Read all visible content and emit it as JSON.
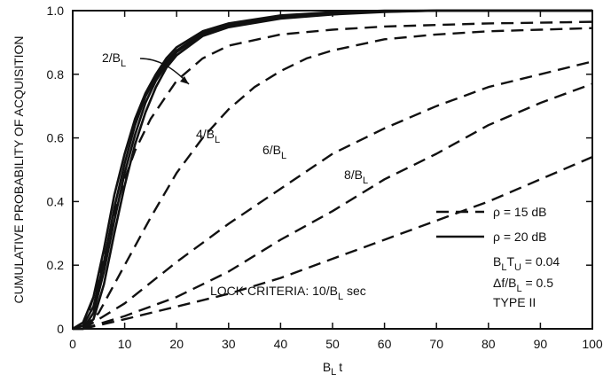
{
  "chart_data": {
    "type": "line",
    "xlabel": "B",
    "xlabel_sub": "L",
    "xlabel_tail": "t",
    "ylabel": "CUMULATIVE PROBABILITY OF ACQUISITION",
    "xlim": [
      0,
      100
    ],
    "ylim": [
      0,
      1.0
    ],
    "x_ticks": [
      0,
      10,
      20,
      30,
      40,
      50,
      60,
      70,
      80,
      90,
      100
    ],
    "y_ticks": [
      0,
      0.2,
      0.4,
      0.6,
      0.8,
      1.0
    ],
    "y_tick_labels": [
      "0",
      "0.2",
      "0.4",
      "0.6",
      "0.8",
      "1.0"
    ],
    "grid": false,
    "legend": {
      "placement": "bottom-right",
      "entries": [
        {
          "style": "dashed",
          "label": "ρ = 15 dB"
        },
        {
          "style": "solid",
          "label": "ρ = 20 dB"
        }
      ],
      "notes": [
        {
          "main": "B",
          "sub": "L",
          "tail": "T",
          "sub2": "U",
          "rest": " = 0.04"
        },
        {
          "main": "Δf/B",
          "sub": "L",
          "tail": "",
          "sub2": "",
          "rest": " = 0.5"
        },
        {
          "main": "TYPE II",
          "sub": "",
          "tail": "",
          "sub2": "",
          "rest": ""
        }
      ]
    },
    "annotation": {
      "main": "LOCK CRITERIA:  10/B",
      "sub": "L",
      "tail": " sec"
    },
    "curve_labels": [
      {
        "main": "2/B",
        "sub": "L"
      },
      {
        "main": "4/B",
        "sub": "L"
      },
      {
        "main": "6/B",
        "sub": "L"
      },
      {
        "main": "8/B",
        "sub": "L"
      }
    ],
    "series": [
      {
        "style": "dashed",
        "x": [
          2,
          5,
          8,
          10,
          12,
          15,
          20,
          25,
          30,
          40,
          50,
          60,
          70,
          80,
          90,
          100
        ],
        "y": [
          0.0,
          0.15,
          0.36,
          0.47,
          0.56,
          0.66,
          0.78,
          0.85,
          0.89,
          0.925,
          0.94,
          0.95,
          0.955,
          0.96,
          0.962,
          0.965
        ]
      },
      {
        "style": "dashed",
        "x": [
          2,
          5,
          10,
          15,
          20,
          25,
          30,
          35,
          40,
          45,
          50,
          60,
          70,
          80,
          90,
          100
        ],
        "y": [
          0.0,
          0.05,
          0.2,
          0.35,
          0.49,
          0.6,
          0.69,
          0.76,
          0.81,
          0.85,
          0.875,
          0.91,
          0.925,
          0.935,
          0.94,
          0.945
        ]
      },
      {
        "style": "dashed",
        "x": [
          2,
          10,
          20,
          30,
          40,
          50,
          60,
          70,
          80,
          90,
          100
        ],
        "y": [
          0.0,
          0.08,
          0.21,
          0.33,
          0.44,
          0.55,
          0.63,
          0.7,
          0.76,
          0.8,
          0.84
        ]
      },
      {
        "style": "dashed",
        "x": [
          2,
          10,
          20,
          30,
          40,
          50,
          60,
          70,
          80,
          90,
          100
        ],
        "y": [
          0.0,
          0.04,
          0.1,
          0.18,
          0.28,
          0.37,
          0.47,
          0.55,
          0.64,
          0.71,
          0.77
        ]
      },
      {
        "style": "dashed",
        "x": [
          2,
          10,
          20,
          30,
          40,
          50,
          60,
          70,
          80,
          90,
          100
        ],
        "y": [
          0.0,
          0.03,
          0.07,
          0.11,
          0.16,
          0.22,
          0.28,
          0.34,
          0.4,
          0.47,
          0.54
        ]
      },
      {
        "style": "solid",
        "x": [
          0,
          2,
          4,
          6,
          8,
          10,
          12,
          14,
          16,
          18,
          20,
          25,
          30,
          40,
          50,
          60,
          70,
          80,
          90,
          100
        ],
        "y": [
          0.0,
          0.02,
          0.1,
          0.25,
          0.42,
          0.55,
          0.66,
          0.74,
          0.8,
          0.85,
          0.885,
          0.935,
          0.96,
          0.985,
          0.995,
          1.0,
          1.0,
          1.0,
          1.0,
          1.0
        ]
      },
      {
        "style": "solid",
        "x": [
          0,
          2,
          4,
          6,
          8,
          10,
          12,
          14,
          16,
          18,
          20,
          25,
          30,
          40,
          50,
          60,
          70,
          80,
          90,
          100
        ],
        "y": [
          0.0,
          0.01,
          0.07,
          0.21,
          0.38,
          0.52,
          0.64,
          0.73,
          0.79,
          0.84,
          0.875,
          0.93,
          0.955,
          0.98,
          0.993,
          0.998,
          1.0,
          1.0,
          1.0,
          1.0
        ]
      },
      {
        "style": "solid",
        "x": [
          0,
          2,
          4,
          6,
          8,
          10,
          12,
          14,
          16,
          18,
          20,
          25,
          30,
          40,
          50,
          60,
          70,
          80,
          90,
          100
        ],
        "y": [
          0.0,
          0.0,
          0.05,
          0.18,
          0.34,
          0.49,
          0.61,
          0.71,
          0.78,
          0.83,
          0.87,
          0.925,
          0.95,
          0.978,
          0.99,
          0.997,
          1.0,
          1.0,
          1.0,
          1.0
        ]
      },
      {
        "style": "solid",
        "x": [
          0,
          2,
          4,
          6,
          8,
          10,
          12,
          14,
          16,
          18,
          20,
          25,
          30,
          40,
          50,
          60,
          70,
          80,
          90,
          100
        ],
        "y": [
          0.0,
          0.0,
          0.03,
          0.14,
          0.3,
          0.45,
          0.58,
          0.68,
          0.76,
          0.82,
          0.86,
          0.92,
          0.948,
          0.975,
          0.988,
          0.996,
          1.0,
          1.0,
          1.0,
          1.0
        ]
      }
    ]
  }
}
